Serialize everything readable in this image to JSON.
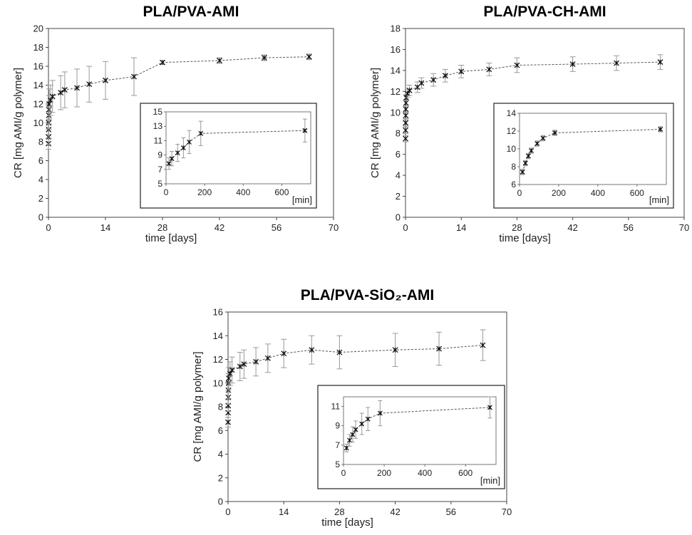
{
  "chart_data": [
    {
      "type": "scatter",
      "title": "PLA/PVA-AMI",
      "xlabel": "time  [days]",
      "ylabel": "CR [mg AMI/g polymer]",
      "xlim": [
        0,
        70
      ],
      "ylim": [
        0,
        20
      ],
      "xticks": [
        0,
        14,
        28,
        42,
        56,
        70
      ],
      "yticks": [
        0,
        2,
        4,
        6,
        8,
        10,
        12,
        14,
        16,
        18,
        20
      ],
      "series": [
        {
          "x": [
            0.01,
            0.02,
            0.04,
            0.06,
            0.08,
            0.12,
            0.17,
            0.5,
            1,
            3,
            4,
            7,
            10,
            14,
            21,
            28,
            42,
            53,
            64
          ],
          "y": [
            7.8,
            8.5,
            9.3,
            10.0,
            10.8,
            11.4,
            12.0,
            12.4,
            12.8,
            13.2,
            13.5,
            13.7,
            14.1,
            14.5,
            14.9,
            16.4,
            16.6,
            16.9,
            17.0
          ],
          "error": [
            0.6,
            0.8,
            1.0,
            1.2,
            1.4,
            1.5,
            1.6,
            1.6,
            1.7,
            1.8,
            1.9,
            2.0,
            1.9,
            2.0,
            2.0,
            0.2,
            0.3,
            0.3,
            0.3
          ]
        }
      ],
      "inset": {
        "xunit": "[min]",
        "xlim": [
          0,
          750
        ],
        "ylim": [
          5,
          15
        ],
        "xticks": [
          0,
          200,
          400,
          600
        ],
        "yticks": [
          5,
          7,
          9,
          11,
          13,
          15
        ],
        "series": [
          {
            "x": [
              15,
              30,
              60,
              90,
              120,
              180,
              720
            ],
            "y": [
              7.8,
              8.5,
              9.3,
              10.0,
              10.8,
              12.0,
              12.4
            ],
            "error": [
              0.8,
              1.0,
              1.2,
              1.4,
              1.6,
              1.7,
              1.6
            ]
          }
        ]
      }
    },
    {
      "type": "scatter",
      "title": "PLA/PVA-CH-AMI",
      "xlabel": "time  [days]",
      "ylabel": "CR [mg AMI/g polymer]",
      "xlim": [
        0,
        70
      ],
      "ylim": [
        0,
        18
      ],
      "xticks": [
        0,
        14,
        28,
        42,
        56,
        70
      ],
      "yticks": [
        0,
        2,
        4,
        6,
        8,
        10,
        12,
        14,
        16,
        18
      ],
      "series": [
        {
          "x": [
            0.01,
            0.02,
            0.04,
            0.06,
            0.08,
            0.12,
            0.17,
            0.5,
            1,
            3,
            4,
            7,
            10,
            14,
            21,
            28,
            42,
            53,
            64
          ],
          "y": [
            7.5,
            8.3,
            9.0,
            9.7,
            10.3,
            10.9,
            11.4,
            11.8,
            12.1,
            12.4,
            12.8,
            13.1,
            13.5,
            13.9,
            14.1,
            14.5,
            14.6,
            14.7,
            14.8
          ],
          "error": [
            0.3,
            0.3,
            0.3,
            0.3,
            0.3,
            0.3,
            0.3,
            0.4,
            0.5,
            0.5,
            0.5,
            0.6,
            0.6,
            0.6,
            0.6,
            0.7,
            0.7,
            0.7,
            0.7
          ]
        }
      ],
      "inset": {
        "xunit": "[min]",
        "xlim": [
          0,
          750
        ],
        "ylim": [
          6,
          14
        ],
        "xticks": [
          0,
          200,
          400,
          600
        ],
        "yticks": [
          6,
          8,
          10,
          12,
          14
        ],
        "series": [
          {
            "x": [
              15,
              30,
              45,
              60,
              90,
              120,
              180,
              720
            ],
            "y": [
              7.4,
              8.4,
              9.2,
              9.8,
              10.6,
              11.2,
              11.8,
              12.2
            ],
            "error": [
              0.3,
              0.3,
              0.3,
              0.3,
              0.3,
              0.3,
              0.3,
              0.3
            ]
          }
        ]
      }
    },
    {
      "type": "scatter",
      "title": "PLA/PVA-SiO₂-AMI",
      "xlabel": "time [days]",
      "ylabel": "CR [mg AMI/g polymer]",
      "xlim": [
        0,
        70
      ],
      "ylim": [
        0,
        16
      ],
      "xticks": [
        0,
        14,
        28,
        42,
        56,
        70
      ],
      "yticks": [
        0,
        2,
        4,
        6,
        8,
        10,
        12,
        14,
        16
      ],
      "series": [
        {
          "x": [
            0.01,
            0.02,
            0.04,
            0.06,
            0.08,
            0.12,
            0.17,
            0.5,
            1,
            3,
            4,
            7,
            10,
            14,
            21,
            28,
            42,
            53,
            64
          ],
          "y": [
            6.7,
            7.5,
            8.1,
            8.8,
            9.4,
            10.0,
            10.4,
            10.8,
            11.1,
            11.4,
            11.6,
            11.8,
            12.1,
            12.5,
            12.8,
            12.6,
            12.8,
            12.9,
            13.2
          ],
          "error": [
            0.4,
            0.4,
            0.5,
            0.6,
            0.7,
            0.8,
            0.9,
            1.0,
            1.1,
            1.2,
            1.2,
            1.2,
            1.2,
            1.2,
            1.2,
            1.4,
            1.4,
            1.4,
            1.3
          ]
        }
      ],
      "inset": {
        "xunit": "[min]",
        "xlim": [
          0,
          750
        ],
        "ylim": [
          5,
          12
        ],
        "xticks": [
          0,
          200,
          400,
          600
        ],
        "yticks": [
          5,
          7,
          9,
          11
        ],
        "series": [
          {
            "x": [
              15,
              30,
              45,
              60,
              90,
              120,
              180,
              720
            ],
            "y": [
              6.7,
              7.5,
              8.1,
              8.6,
              9.2,
              9.7,
              10.3,
              10.9
            ],
            "error": [
              0.4,
              0.6,
              0.8,
              0.9,
              1.1,
              1.2,
              1.3,
              1.1
            ]
          }
        ]
      }
    }
  ]
}
